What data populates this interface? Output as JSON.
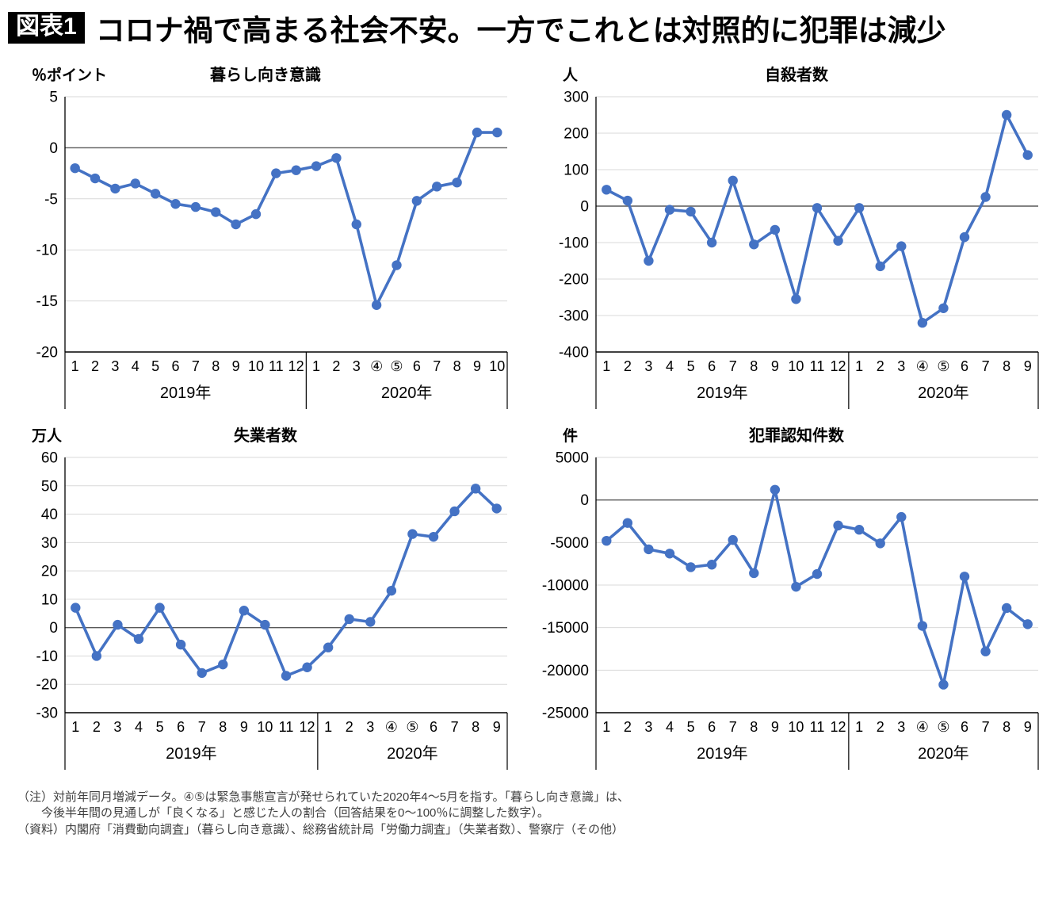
{
  "header": {
    "badge": "図表1",
    "title": "コロナ禍で高まる社会不安。一方でこれとは対照的に犯罪は減少"
  },
  "colors": {
    "line": "#4472C4",
    "grid": "#d9d9d9",
    "zero_line": "#595959",
    "axis": "#000000"
  },
  "footnote": {
    "line1": "（注）対前年同月増減データ。④⑤は緊急事態宣言が発せられていた2020年4～5月を指す。「暮らし向き意識」は、",
    "line2": "今後半年間の見通しが「良くなる」と感じた人の割合（回答結果を0～100％に調整した数字）。",
    "line3": "（資料）内閣府「消費動向調査」（暮らし向き意識）、総務省統計局「労働力調査」（失業者数）、警察庁（その他）"
  },
  "chart_data": [
    {
      "type": "line",
      "title": "暮らし向き意識",
      "unit": "％ポイント",
      "ylim": [
        -20,
        5
      ],
      "yticks": [
        5,
        0,
        -5,
        -10,
        -15,
        -20
      ],
      "x": [
        "1",
        "2",
        "3",
        "4",
        "5",
        "6",
        "7",
        "8",
        "9",
        "10",
        "11",
        "12",
        "1",
        "2",
        "3",
        "④",
        "⑤",
        "6",
        "7",
        "8",
        "9",
        "10"
      ],
      "x_group_sizes": [
        12,
        10
      ],
      "year_labels": [
        "2019年",
        "2020年"
      ],
      "values": [
        -2,
        -3,
        -4,
        -3.5,
        -4.5,
        -5.5,
        -5.8,
        -6.3,
        -7.5,
        -6.5,
        -2.5,
        -2.2,
        -1.8,
        -1,
        -7.5,
        -15.4,
        -11.5,
        -5.2,
        -3.8,
        -3.4,
        1.5,
        1.5
      ]
    },
    {
      "type": "line",
      "title": "自殺者数",
      "unit": "人",
      "ylim": [
        -400,
        300
      ],
      "yticks": [
        300,
        200,
        100,
        0,
        -100,
        -200,
        -300,
        -400
      ],
      "x": [
        "1",
        "2",
        "3",
        "4",
        "5",
        "6",
        "7",
        "8",
        "9",
        "10",
        "11",
        "12",
        "1",
        "2",
        "3",
        "④",
        "⑤",
        "6",
        "7",
        "8",
        "9"
      ],
      "x_group_sizes": [
        12,
        9
      ],
      "year_labels": [
        "2019年",
        "2020年"
      ],
      "values": [
        45,
        15,
        -150,
        -10,
        -15,
        -100,
        70,
        -105,
        -65,
        -255,
        -5,
        -95,
        -5,
        -165,
        -110,
        -320,
        -280,
        -85,
        25,
        250,
        140
      ]
    },
    {
      "type": "line",
      "title": "失業者数",
      "unit": "万人",
      "ylim": [
        -30,
        60
      ],
      "yticks": [
        60,
        50,
        40,
        30,
        20,
        10,
        0,
        -10,
        -20,
        -30
      ],
      "x": [
        "1",
        "2",
        "3",
        "4",
        "5",
        "6",
        "7",
        "8",
        "9",
        "10",
        "11",
        "12",
        "1",
        "2",
        "3",
        "④",
        "⑤",
        "6",
        "7",
        "8",
        "9"
      ],
      "x_group_sizes": [
        12,
        9
      ],
      "year_labels": [
        "2019年",
        "2020年"
      ],
      "values": [
        7,
        -10,
        1,
        -4,
        7,
        -6,
        -16,
        -13,
        6,
        1,
        -17,
        -14,
        -7,
        3,
        2,
        13,
        33,
        32,
        41,
        49,
        42
      ]
    },
    {
      "type": "line",
      "title": "犯罪認知件数",
      "unit": "件",
      "ylim": [
        -25000,
        5000
      ],
      "yticks": [
        5000,
        0,
        -5000,
        -10000,
        -15000,
        -20000,
        -25000
      ],
      "x": [
        "1",
        "2",
        "3",
        "4",
        "5",
        "6",
        "7",
        "8",
        "9",
        "10",
        "11",
        "12",
        "1",
        "2",
        "3",
        "④",
        "⑤",
        "6",
        "7",
        "8",
        "9"
      ],
      "x_group_sizes": [
        12,
        9
      ],
      "year_labels": [
        "2019年",
        "2020年"
      ],
      "values": [
        -4800,
        -2700,
        -5800,
        -6300,
        -7900,
        -7600,
        -4700,
        -8600,
        1200,
        -10200,
        -8700,
        -3000,
        -3500,
        -5100,
        -2000,
        -14800,
        -21700,
        -9000,
        -17800,
        -12700,
        -14600
      ]
    }
  ]
}
